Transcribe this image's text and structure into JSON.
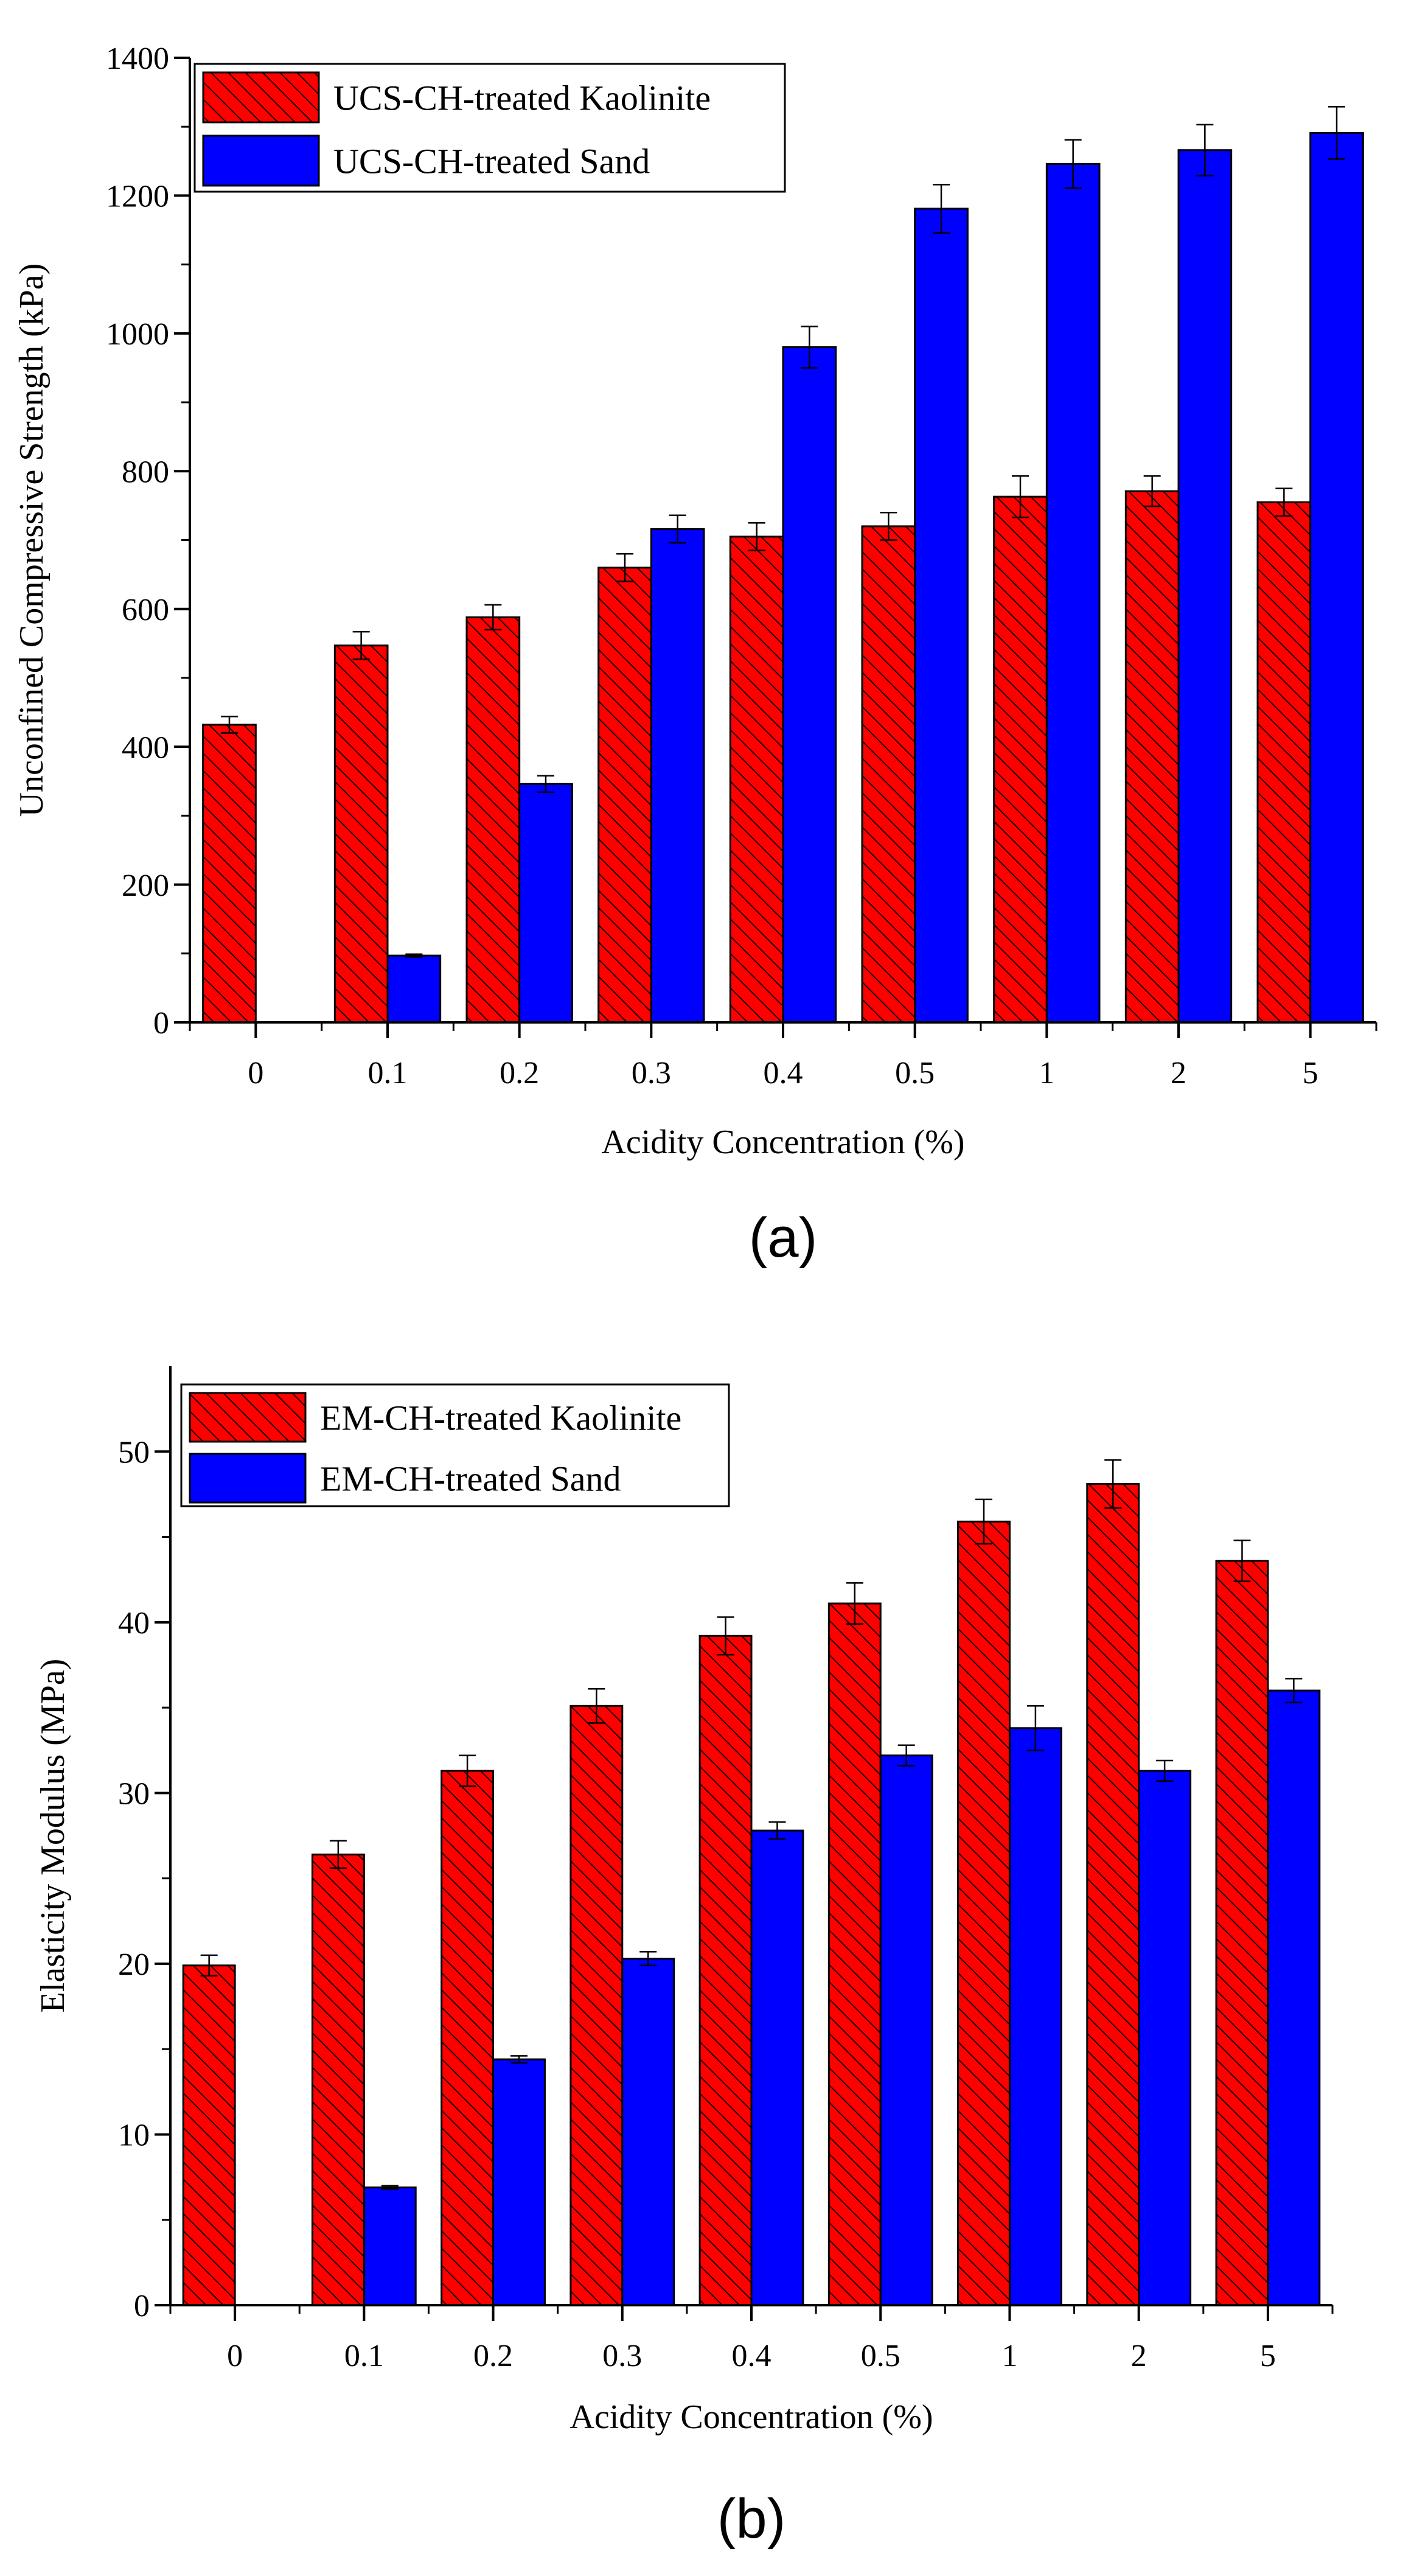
{
  "colors": {
    "kaolinite": "#ff0000",
    "sand": "#0000ff",
    "axis": "#000000",
    "hatch": "#000000"
  },
  "chart_data": [
    {
      "type": "bar",
      "caption": "(a)",
      "title": "",
      "xlabel": "Acidity Concentration (%)",
      "ylabel": "Unconfined  Compressive Strength (kPa)",
      "categories": [
        "0",
        "0.1",
        "0.2",
        "0.3",
        "0.4",
        "0.5",
        "1",
        "2",
        "5"
      ],
      "ylim": [
        0,
        1400
      ],
      "yticks": [
        0,
        200,
        400,
        600,
        800,
        1000,
        1200,
        1400
      ],
      "legend_position": "top-left",
      "series": [
        {
          "name": "UCS-CH-treated Kaolinite",
          "color": "#ff0000",
          "pattern": "hatched",
          "values": [
            432,
            547,
            588,
            660,
            705,
            720,
            763,
            771,
            755
          ],
          "errors": [
            12,
            20,
            18,
            20,
            20,
            20,
            30,
            22,
            20
          ]
        },
        {
          "name": "UCS-CH-treated Sand",
          "color": "#0000ff",
          "pattern": "solid",
          "values": [
            0,
            97,
            346,
            716,
            980,
            1181,
            1246,
            1266,
            1291
          ],
          "errors": [
            0,
            2,
            12,
            20,
            30,
            35,
            35,
            37,
            38
          ]
        }
      ]
    },
    {
      "type": "bar",
      "caption": "(b)",
      "title": "",
      "xlabel": "Acidity Concentration (%)",
      "ylabel": "Elasticity Modulus (MPa)",
      "categories": [
        "0",
        "0.1",
        "0.2",
        "0.3",
        "0.4",
        "0.5",
        "1",
        "2",
        "5"
      ],
      "ylim": [
        0,
        55
      ],
      "yticks": [
        0,
        10,
        20,
        30,
        40,
        50
      ],
      "legend_position": "top-left",
      "series": [
        {
          "name": "EM-CH-treated Kaolinite",
          "color": "#ff0000",
          "pattern": "hatched",
          "values": [
            19.9,
            26.4,
            31.3,
            35.1,
            39.2,
            41.1,
            45.9,
            48.1,
            43.6
          ],
          "errors": [
            0.6,
            0.8,
            0.9,
            1.0,
            1.1,
            1.2,
            1.3,
            1.4,
            1.2
          ]
        },
        {
          "name": "EM-CH-treated Sand",
          "color": "#0000ff",
          "pattern": "solid",
          "values": [
            0,
            6.9,
            14.4,
            20.3,
            27.8,
            32.2,
            33.8,
            31.3,
            36.0
          ],
          "errors": [
            0,
            0.1,
            0.2,
            0.4,
            0.5,
            0.6,
            1.3,
            0.6,
            0.7
          ]
        }
      ]
    }
  ]
}
